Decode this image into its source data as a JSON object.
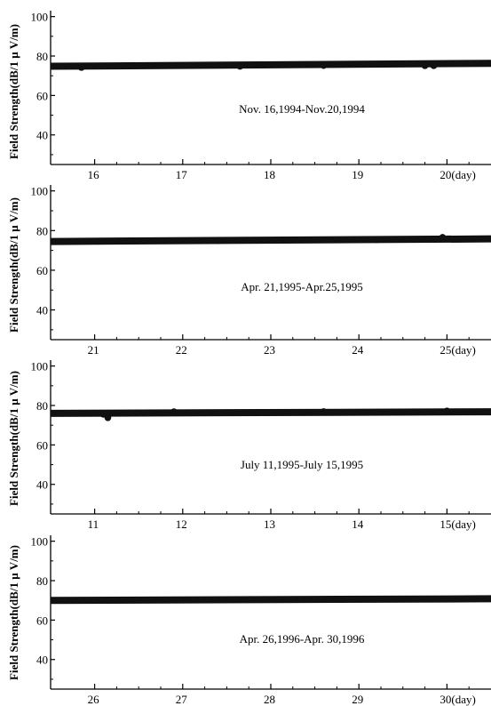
{
  "chart_data": [
    {
      "type": "scatter",
      "ylabel": "Field Strength(dB/1 μ V/m)",
      "annotation": "Nov. 16,1994-Nov.20,1994",
      "x_ticks": [
        "16",
        "17",
        "18",
        "19",
        "20(day)"
      ],
      "y_ticks": [
        "40",
        "60",
        "80",
        "100"
      ],
      "xlim": [
        15.5,
        20.5
      ],
      "ylim": [
        25,
        103
      ],
      "series": [
        {
          "x": [
            15.5,
            20.5
          ],
          "y": [
            74.8,
            76.3
          ]
        }
      ],
      "points": [
        {
          "x": 15.85,
          "y": 74.2
        },
        {
          "x": 17.65,
          "y": 74.8
        },
        {
          "x": 18.6,
          "y": 75.2
        },
        {
          "x": 19.75,
          "y": 75.1
        },
        {
          "x": 19.85,
          "y": 75.1
        }
      ]
    },
    {
      "type": "scatter",
      "ylabel": "Field Strength(dB/1 μ V/m)",
      "annotation": "Apr. 21,1995-Apr.25,1995",
      "x_ticks": [
        "21",
        "22",
        "23",
        "24",
        "25(day)"
      ],
      "y_ticks": [
        "40",
        "60",
        "80",
        "100"
      ],
      "xlim": [
        20.5,
        25.5
      ],
      "ylim": [
        25,
        103
      ],
      "series": [
        {
          "x": [
            20.5,
            25.5
          ],
          "y": [
            74.5,
            75.8
          ]
        }
      ],
      "points": [
        {
          "x": 21.05,
          "y": 74.6
        },
        {
          "x": 22.4,
          "y": 74.9
        },
        {
          "x": 24.2,
          "y": 75.4
        },
        {
          "x": 24.95,
          "y": 76.6
        }
      ]
    },
    {
      "type": "scatter",
      "ylabel": "Field Strength(dB/1 μ V/m)",
      "annotation": "July 11,1995-July 15,1995",
      "x_ticks": [
        "11",
        "12",
        "13",
        "14",
        "15(day)"
      ],
      "y_ticks": [
        "40",
        "60",
        "80",
        "100"
      ],
      "xlim": [
        10.5,
        15.5
      ],
      "ylim": [
        25,
        103
      ],
      "series": [
        {
          "x": [
            10.5,
            15.5
          ],
          "y": [
            76.0,
            76.8
          ]
        }
      ],
      "points": [
        {
          "x": 11.1,
          "y": 75.5
        },
        {
          "x": 11.15,
          "y": 73.8
        },
        {
          "x": 11.9,
          "y": 76.8
        },
        {
          "x": 13.6,
          "y": 76.9
        },
        {
          "x": 15.0,
          "y": 77.2
        }
      ]
    },
    {
      "type": "scatter",
      "ylabel": "Field Strength(dB/1 μ V/m)",
      "annotation": "Apr. 26,1996-Apr. 30,1996",
      "x_ticks": [
        "26",
        "27",
        "28",
        "29",
        "30(day)"
      ],
      "y_ticks": [
        "40",
        "60",
        "80",
        "100"
      ],
      "xlim": [
        25.5,
        30.5
      ],
      "ylim": [
        25,
        103
      ],
      "series": [
        {
          "x": [
            25.5,
            30.5
          ],
          "y": [
            70.0,
            70.8
          ]
        }
      ],
      "points": []
    }
  ],
  "colors": {
    "marker": "#111111",
    "axis": "#000000"
  }
}
